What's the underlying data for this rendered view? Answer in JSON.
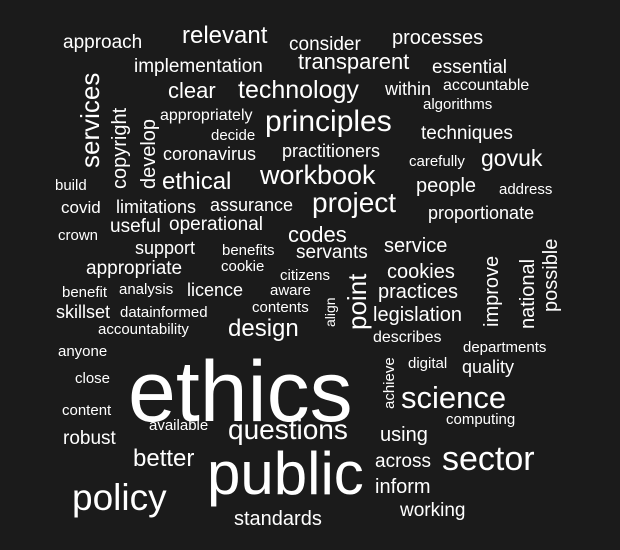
{
  "words": [
    "ethics",
    "public",
    "policy",
    "sector",
    "science",
    "questions",
    "principles",
    "project",
    "workbook",
    "technology",
    "services",
    "point",
    "relevant",
    "ethical",
    "design",
    "better",
    "govuk",
    "people",
    "cookies",
    "standards",
    "copyright",
    "develop",
    "clear",
    "codes",
    "transparent",
    "processes",
    "approach",
    "implementation",
    "consider",
    "essential",
    "within",
    "accountable",
    "algorithms",
    "appropriately",
    "decide",
    "coronavirus",
    "practitioners",
    "techniques",
    "carefully",
    "build",
    "address",
    "covid",
    "limitations",
    "assurance",
    "proportionate",
    "crown",
    "useful",
    "operational",
    "support",
    "benefits",
    "servants",
    "service",
    "improve",
    "national",
    "possible",
    "appropriate",
    "cookie",
    "citizens",
    "benefit",
    "analysis",
    "licence",
    "aware",
    "practices",
    "skillset",
    "datainformed",
    "contents",
    "align",
    "legislation",
    "accountability",
    "describes",
    "anyone",
    "departments",
    "digital",
    "quality",
    "close",
    "achieve",
    "content",
    "computing",
    "available",
    "robust",
    "using",
    "across",
    "inform",
    "working"
  ]
}
